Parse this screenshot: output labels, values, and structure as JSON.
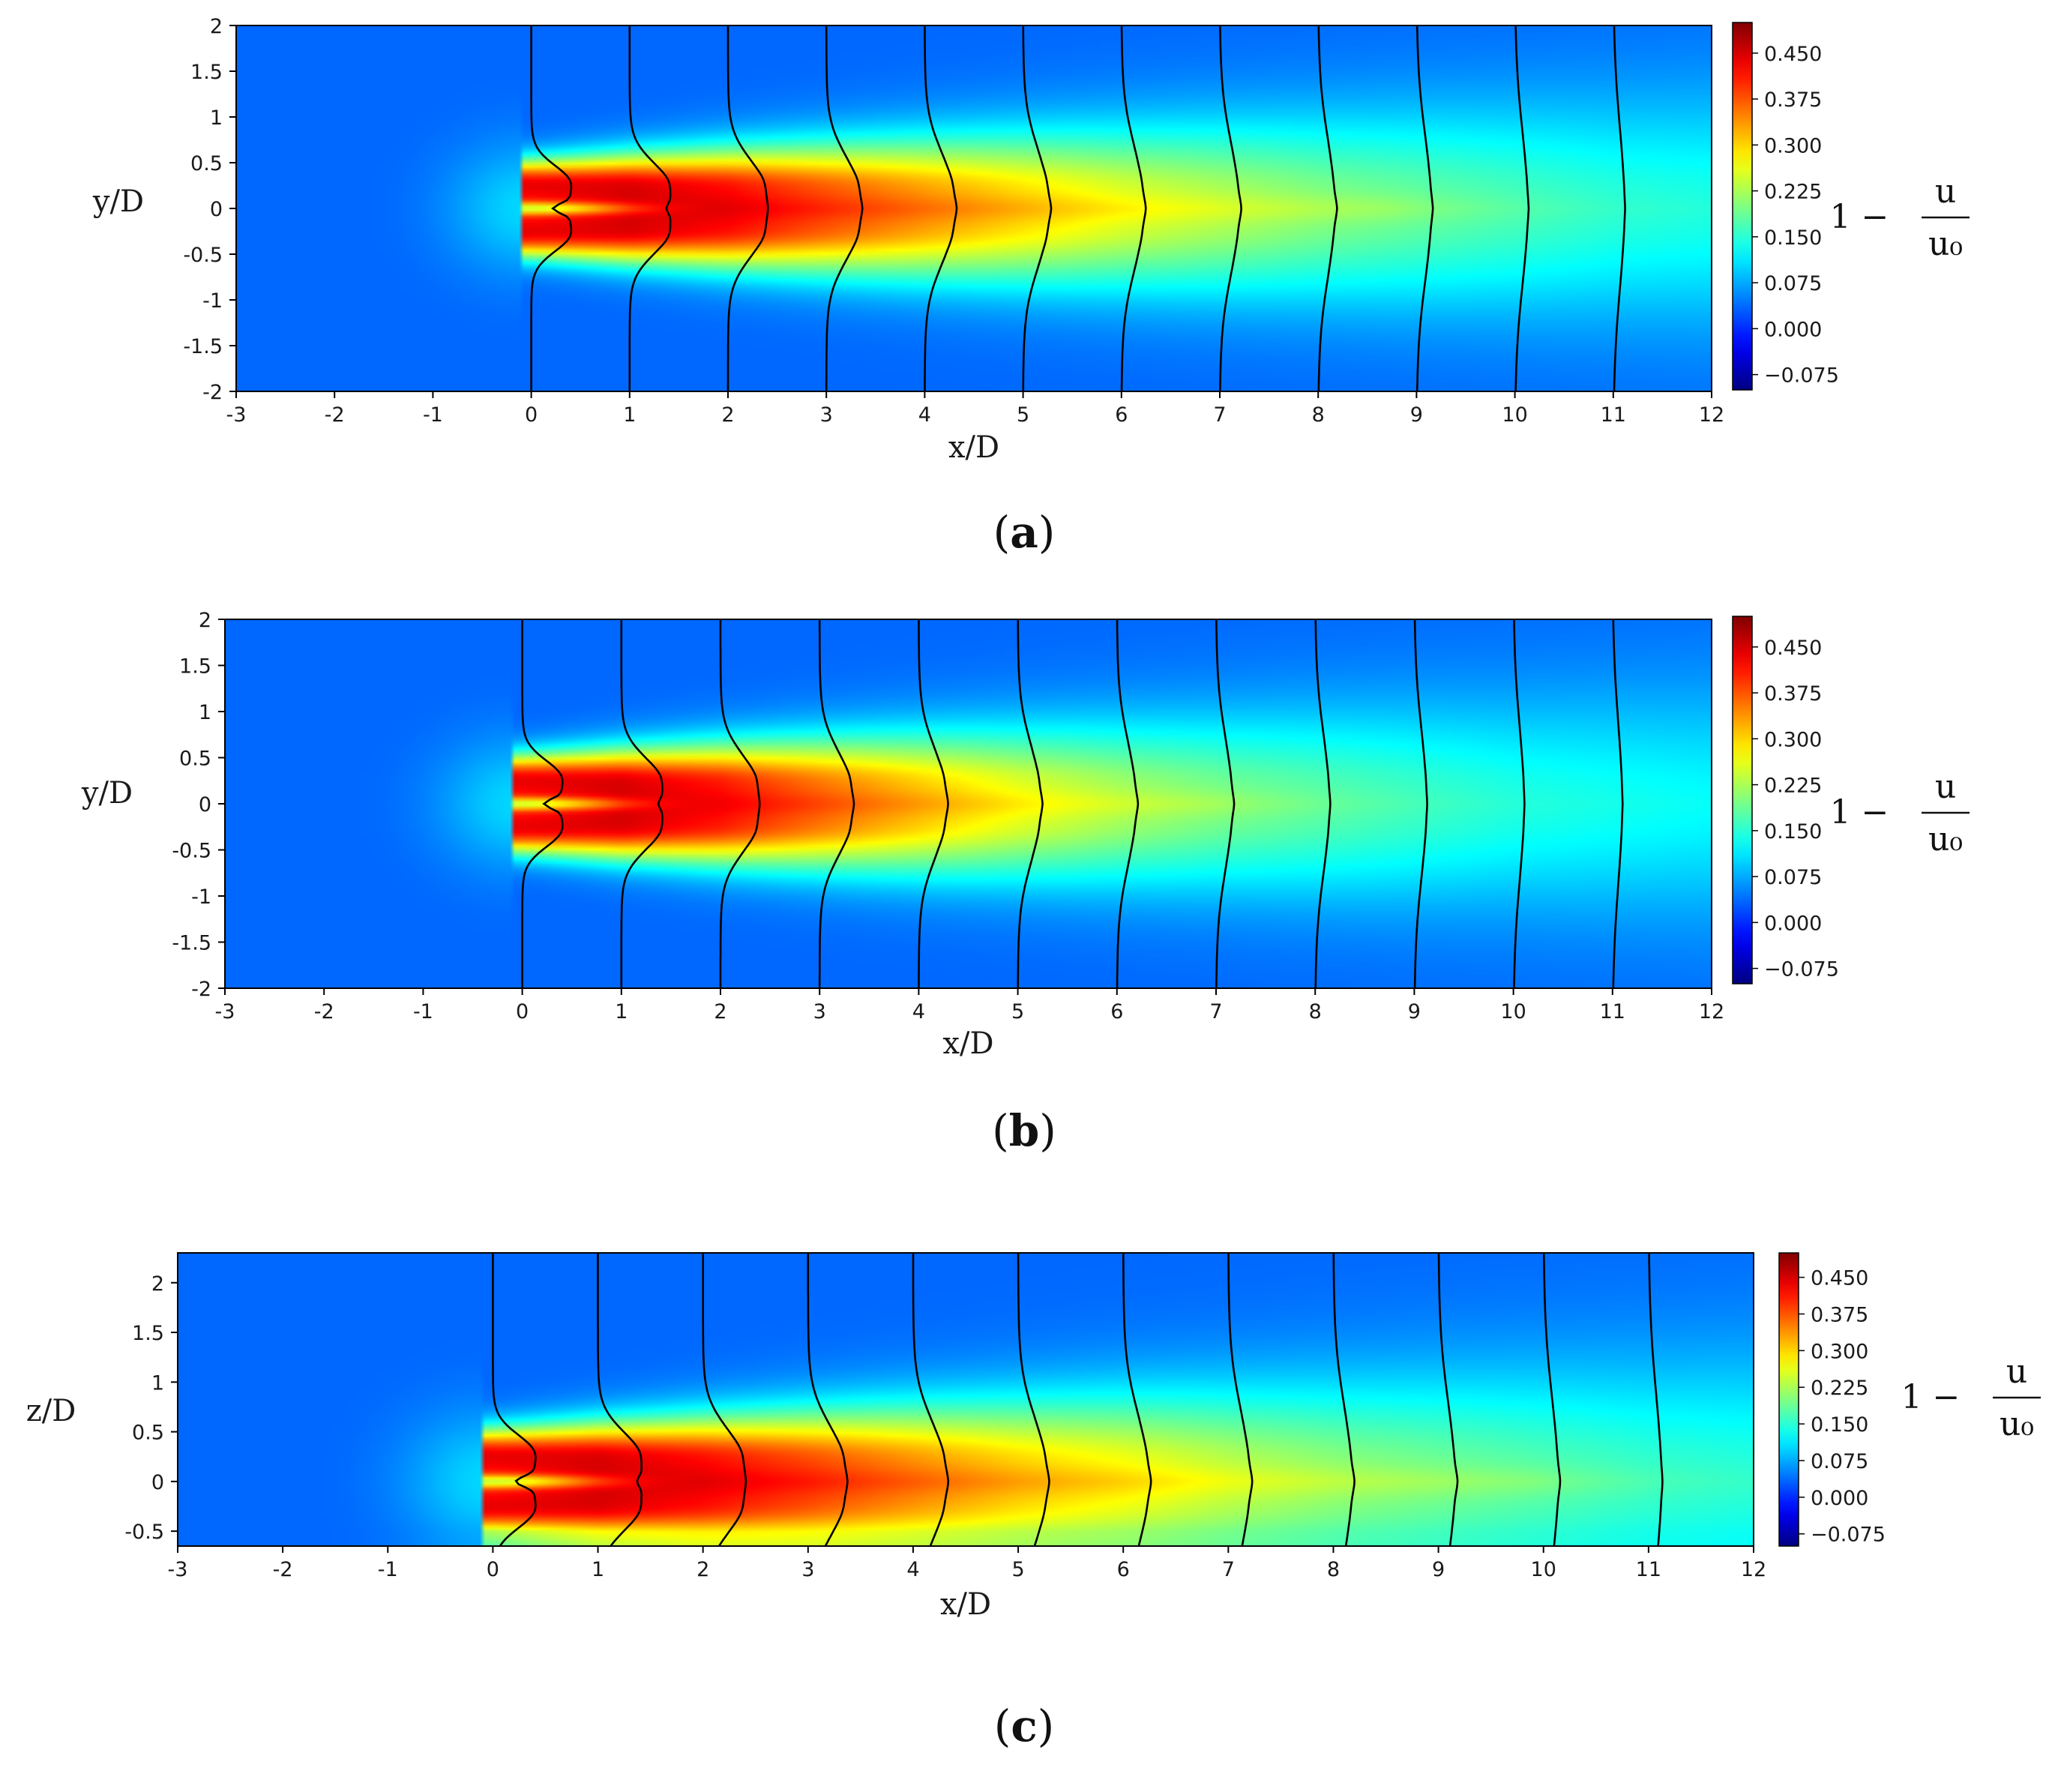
{
  "chart_data": [
    {
      "type": "heatmap",
      "panel_label": "(a)",
      "xlabel": "x/D",
      "ylabel": "y/D",
      "xlim": [
        -3,
        12
      ],
      "ylim": [
        -2,
        2
      ],
      "xticks": [
        -3,
        -2,
        -1,
        0,
        1,
        2,
        3,
        4,
        5,
        6,
        7,
        8,
        9,
        10,
        11,
        12
      ],
      "yticks": [
        2,
        1.5,
        1,
        0.5,
        0,
        -0.5,
        -1,
        -1.5,
        -2
      ],
      "colorbar": {
        "label": "1 − u/u₀",
        "ticks": [
          "0.450",
          "0.375",
          "0.300",
          "0.225",
          "0.150",
          "0.075",
          "0.000",
          "−0.075"
        ],
        "range": [
          -0.1,
          0.5
        ]
      },
      "profile_stations": [
        0,
        1,
        2,
        3,
        4,
        5,
        6,
        7,
        8,
        9,
        10,
        11
      ],
      "wake_core_length": 8.7,
      "peak_deficits": [
        0.42,
        0.46,
        0.45,
        0.41,
        0.37,
        0.33,
        0.29,
        0.26,
        0.23,
        0.21,
        0.19,
        0.17
      ]
    },
    {
      "type": "heatmap",
      "panel_label": "(b)",
      "xlabel": "x/D",
      "ylabel": "y/D",
      "xlim": [
        -3,
        12
      ],
      "ylim": [
        -2,
        2
      ],
      "xticks": [
        -3,
        -2,
        -1,
        0,
        1,
        2,
        3,
        4,
        5,
        6,
        7,
        8,
        9,
        10,
        11,
        12
      ],
      "yticks": [
        2,
        1.5,
        1,
        0.5,
        0,
        -0.5,
        -1,
        -1.5,
        -2
      ],
      "colorbar": {
        "label": "1 − u/u₀",
        "ticks": [
          "0.450",
          "0.375",
          "0.300",
          "0.225",
          "0.150",
          "0.075",
          "0.000",
          "−0.075"
        ],
        "range": [
          -0.1,
          0.5
        ]
      },
      "profile_stations": [
        0,
        1,
        2,
        3,
        4,
        5,
        6,
        7,
        8,
        9,
        10,
        11
      ],
      "wake_core_length": 7.0,
      "peak_deficits": [
        0.42,
        0.46,
        0.44,
        0.39,
        0.34,
        0.29,
        0.25,
        0.22,
        0.2,
        0.18,
        0.16,
        0.15
      ]
    },
    {
      "type": "heatmap",
      "panel_label": "(c)",
      "xlabel": "x/D",
      "ylabel": "z/D",
      "xlim": [
        -3,
        12
      ],
      "ylim": [
        -0.65,
        2.3
      ],
      "xticks": [
        -3,
        -2,
        -1,
        0,
        1,
        2,
        3,
        4,
        5,
        6,
        7,
        8,
        9,
        10,
        11,
        12
      ],
      "yticks": [
        2,
        1.5,
        1,
        0.5,
        0,
        -0.5
      ],
      "colorbar": {
        "label": "1 − u/u₀",
        "ticks": [
          "0.450",
          "0.375",
          "0.300",
          "0.225",
          "0.150",
          "0.075",
          "0.000",
          "−0.075"
        ],
        "range": [
          -0.1,
          0.5
        ]
      },
      "profile_stations": [
        0,
        1,
        2,
        3,
        4,
        5,
        6,
        7,
        8,
        9,
        10,
        11
      ],
      "wake_core_length": 9.9,
      "peak_deficits": [
        0.42,
        0.46,
        0.45,
        0.42,
        0.38,
        0.34,
        0.31,
        0.27,
        0.24,
        0.22,
        0.2,
        0.18
      ]
    }
  ]
}
